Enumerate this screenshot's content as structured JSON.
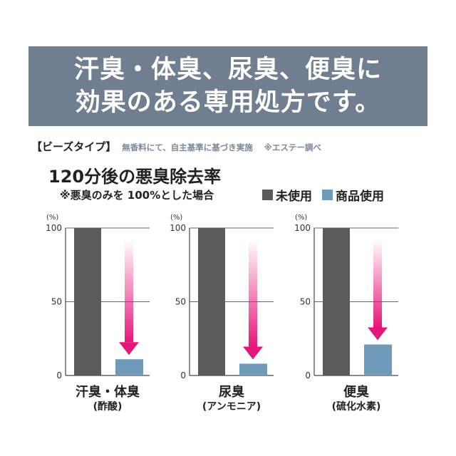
{
  "banner": {
    "line1": "汗臭・体臭、尿臭、便臭に",
    "line2": "効果のある専用処方です。"
  },
  "note": {
    "type": "【ビーズタイプ】",
    "desc": "無香料にて、自主基準に基づき実施",
    "source": "※エステー調べ"
  },
  "colors": {
    "banner": "#6f7f8f",
    "unused": "#5b5b5b",
    "used": "#6f9ab8",
    "arrow": "#e6177a"
  },
  "chart_data": {
    "type": "bar",
    "title": "120分後の悪臭除去率",
    "subtitle": "※悪臭のみを 100%とした場合",
    "unit": "(%)",
    "yticks": [
      "100",
      "50",
      "0"
    ],
    "ylim": [
      0,
      100
    ],
    "legend_position": "top-right",
    "series": [
      {
        "name": "未使用",
        "values": [
          100,
          100,
          100
        ]
      },
      {
        "name": "商品使用",
        "values": [
          11,
          8,
          21
        ]
      }
    ],
    "panels": [
      {
        "name": "汗臭・体臭",
        "sub": "(酢酸)"
      },
      {
        "name": "尿臭",
        "sub": "(アンモニア)"
      },
      {
        "name": "便臭",
        "sub": "(硫化水素)"
      }
    ]
  }
}
